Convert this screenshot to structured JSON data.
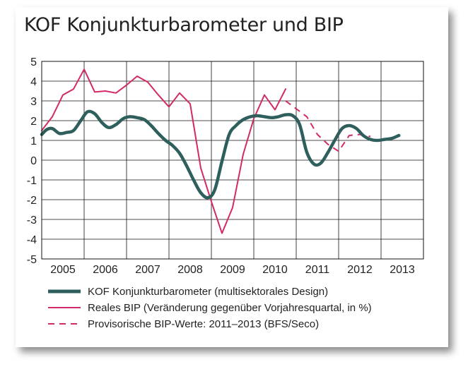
{
  "title": "KOF Konjunkturbarometer und BIP",
  "chart_data": {
    "type": "line",
    "title": "KOF Konjunkturbarometer und BIP",
    "xlabel": "",
    "ylabel": "",
    "xlim": [
      2005,
      2014
    ],
    "ylim": [
      -5,
      5
    ],
    "yticks": [
      -5,
      -4,
      -3,
      -2,
      -1,
      0,
      1,
      2,
      3,
      4,
      5
    ],
    "xtick_labels": [
      "2005",
      "2006",
      "2007",
      "2008",
      "2009",
      "2010",
      "2011",
      "2012",
      "2013"
    ],
    "grid": true,
    "legend_position": "bottom",
    "series": [
      {
        "name": "KOF Konjunkturbarometer (multisektorales Design)",
        "color": "#2f5f5d",
        "style": "solid-thick",
        "x": [
          2005.0,
          2005.12,
          2005.25,
          2005.42,
          2005.58,
          2005.75,
          2005.92,
          2006.08,
          2006.25,
          2006.42,
          2006.58,
          2006.75,
          2006.92,
          2007.08,
          2007.25,
          2007.42,
          2007.58,
          2007.75,
          2007.92,
          2008.08,
          2008.25,
          2008.42,
          2008.58,
          2008.75,
          2008.92,
          2009.08,
          2009.25,
          2009.42,
          2009.58,
          2009.75,
          2009.92,
          2010.08,
          2010.25,
          2010.42,
          2010.58,
          2010.75,
          2010.92,
          2011.08,
          2011.25,
          2011.42,
          2011.58,
          2011.75,
          2011.92,
          2012.08,
          2012.25,
          2012.42,
          2012.58,
          2012.75,
          2012.92,
          2013.08,
          2013.25,
          2013.42
        ],
        "y": [
          1.3,
          1.55,
          1.6,
          1.35,
          1.4,
          1.5,
          2.0,
          2.45,
          2.35,
          1.9,
          1.65,
          1.8,
          2.1,
          2.2,
          2.15,
          2.05,
          1.75,
          1.35,
          1.0,
          0.75,
          0.35,
          -0.3,
          -1.0,
          -1.65,
          -1.9,
          -1.5,
          -0.05,
          1.3,
          1.75,
          2.05,
          2.2,
          2.25,
          2.2,
          2.15,
          2.2,
          2.3,
          2.25,
          1.8,
          0.4,
          -0.2,
          -0.15,
          0.4,
          1.05,
          1.6,
          1.75,
          1.6,
          1.25,
          1.05,
          1.0,
          1.05,
          1.1,
          1.25
        ]
      },
      {
        "name": "Reales BIP (Veränderung gegenüber Vorjahresquartal, in %)",
        "color": "#d22a68",
        "style": "solid",
        "x": [
          2005.0,
          2005.25,
          2005.5,
          2005.75,
          2006.0,
          2006.25,
          2006.5,
          2006.75,
          2007.0,
          2007.25,
          2007.5,
          2007.75,
          2008.0,
          2008.25,
          2008.5,
          2008.75,
          2009.0,
          2009.25,
          2009.5,
          2009.75,
          2010.0,
          2010.25,
          2010.5,
          2010.75
        ],
        "y": [
          1.5,
          2.2,
          3.3,
          3.6,
          4.6,
          3.45,
          3.5,
          3.4,
          3.8,
          4.25,
          3.95,
          3.3,
          2.7,
          3.4,
          2.85,
          -0.4,
          -2.1,
          -3.7,
          -2.4,
          0.3,
          2.1,
          3.3,
          2.55,
          3.6
        ]
      },
      {
        "name": "Provisorische BIP-Werte: 2011–2013 (BFS/Seco)",
        "color": "#d22a68",
        "style": "dashed",
        "x": [
          2010.75,
          2011.0,
          2011.25,
          2011.5,
          2011.75,
          2012.0,
          2012.25,
          2012.5,
          2012.75
        ],
        "y": [
          3.0,
          2.6,
          2.2,
          1.3,
          0.8,
          0.45,
          1.25,
          1.3,
          1.2
        ]
      }
    ]
  }
}
